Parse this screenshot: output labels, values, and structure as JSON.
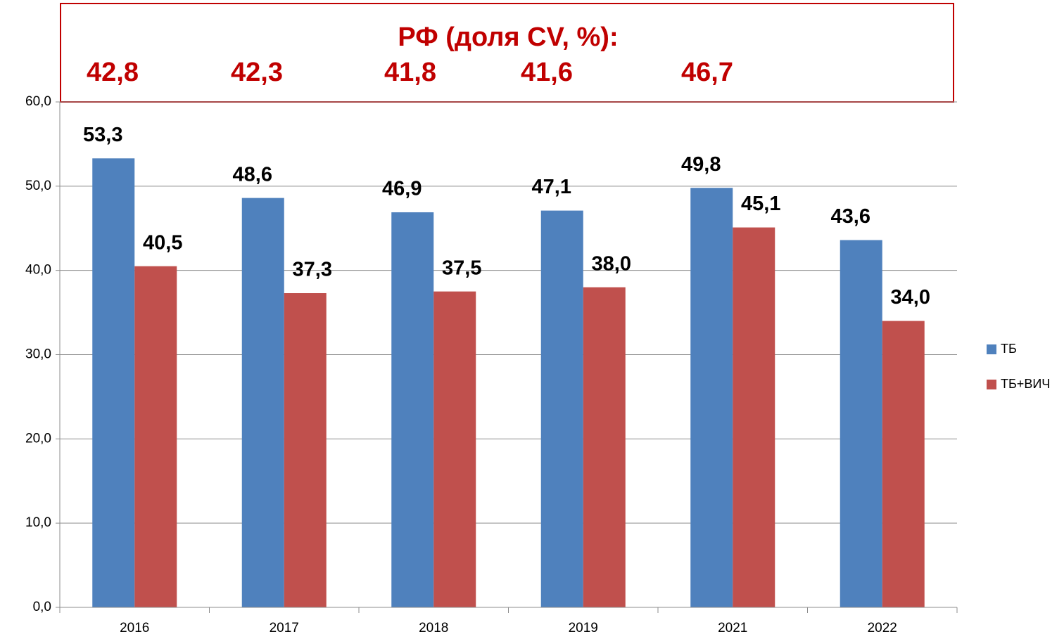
{
  "chart_data": {
    "type": "bar",
    "categories": [
      "2016",
      "2017",
      "2018",
      "2019",
      "2021",
      "2022"
    ],
    "series": [
      {
        "name": "ТБ",
        "color": "#4f81bd",
        "values": [
          53.3,
          48.6,
          46.9,
          47.1,
          49.8,
          43.6
        ],
        "value_labels": [
          "53,3",
          "48,6",
          "46,9",
          "47,1",
          "49,8",
          "43,6"
        ]
      },
      {
        "name": "ТБ+ВИЧ",
        "color": "#c0504d",
        "values": [
          40.5,
          37.3,
          37.5,
          38.0,
          45.1,
          34.0
        ],
        "value_labels": [
          "40,5",
          "37,3",
          "37,5",
          "38,0",
          "45,1",
          "34,0"
        ]
      }
    ],
    "ylim": [
      0,
      60
    ],
    "yticks": [
      {
        "value": 0,
        "label": "0,0"
      },
      {
        "value": 10,
        "label": "10,0"
      },
      {
        "value": 20,
        "label": "20,0"
      },
      {
        "value": 30,
        "label": "30,0"
      },
      {
        "value": 40,
        "label": "40,0"
      },
      {
        "value": 50,
        "label": "50,0"
      },
      {
        "value": 60,
        "label": "60,0"
      }
    ],
    "grid": true,
    "legend": "right",
    "annotation": {
      "title": "РФ (доля CV, %):",
      "values": [
        42.8,
        42.3,
        41.8,
        41.6,
        46.7
      ],
      "value_labels": [
        "42,8",
        "42,3",
        "41,8",
        "41,6",
        "46,7"
      ]
    }
  }
}
